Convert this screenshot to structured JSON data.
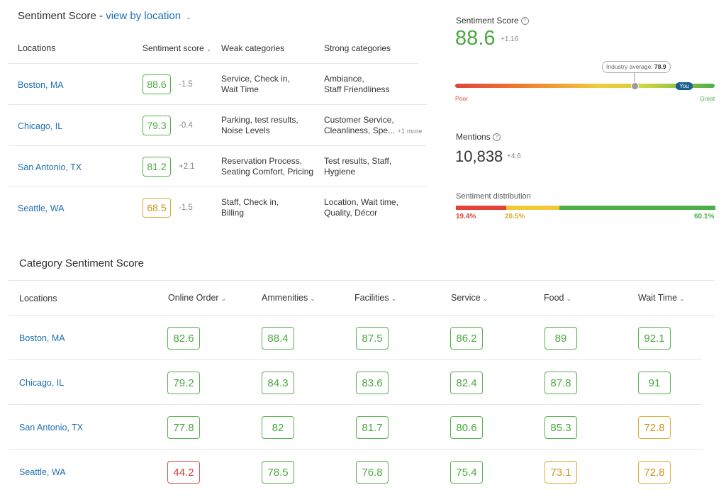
{
  "location_panel": {
    "title": "Sentiment Score - ",
    "view_link": "view by location",
    "headers": {
      "locations": "Locations",
      "sentiment_score": "Sentiment score",
      "weak": "Weak categories",
      "strong": "Strong categories"
    },
    "rows": [
      {
        "location": "Boston, MA",
        "score": "88.6",
        "delta": "-1.5",
        "weak1": "Service, Check in,",
        "weak2": "Wait Time",
        "strong1": "Ambiance,",
        "strong2": "Staff Friendliness",
        "more": ""
      },
      {
        "location": "Chicago, IL",
        "score": "79.3",
        "delta": "-0.4",
        "weak1": "Parking, test results,",
        "weak2": "Noise Levels",
        "strong1": "Customer Service,",
        "strong2": "Cleanliness, Spe...",
        "more": "+1 more"
      },
      {
        "location": "San Antonio, TX",
        "score": "81.2",
        "delta": "+2.1",
        "weak1": "Reservation Process,",
        "weak2": "Seating Comfort, Pricing",
        "strong1": "Test results, Staff,",
        "strong2": "Hygiene",
        "more": ""
      },
      {
        "location": "Seattle, WA",
        "score": "68.5",
        "delta": "-1.5",
        "weak1": "Staff, Check in,",
        "weak2": "Billing",
        "strong1": "Location, Wait time,",
        "strong2": "Quality, Décor",
        "more": ""
      }
    ]
  },
  "summary": {
    "sentiment_label": "Sentiment Score",
    "score": "88.6",
    "score_delta": "+1.16",
    "industry_label": "Industry average: ",
    "industry_value": "78.9",
    "you_label": "You",
    "poor_label": "Poor",
    "great_label": "Great",
    "industry_average": 78.9,
    "you_score": 88.6,
    "mentions_label": "Mentions",
    "mentions": "10,838",
    "mentions_delta": "+4.6",
    "distribution_label": "Sentiment distribution",
    "dist_negative": "19.4%",
    "dist_neutral": "20.5%",
    "dist_positive": "60.1%",
    "colors": {
      "negative": "#e0433b",
      "neutral": "#f0c93a",
      "positive": "#4caf4a",
      "accent": "#55b24a"
    }
  },
  "category_panel": {
    "title": "Category Sentiment Score",
    "headers": {
      "locations": "Locations",
      "online_order": "Online Order",
      "ammenities": "Ammenities",
      "facilities": "Facilities",
      "service": "Service",
      "food": "Food",
      "wait_time": "Wait Time"
    },
    "rows": [
      {
        "location": "Boston, MA",
        "scores": [
          "82.6",
          "88.4",
          "87.5",
          "86.2",
          "89",
          "92.1"
        ]
      },
      {
        "location": "Chicago, IL",
        "scores": [
          "79.2",
          "84.3",
          "83.6",
          "82.4",
          "87.8",
          "91"
        ]
      },
      {
        "location": "San Antonio, TX",
        "scores": [
          "77.8",
          "82",
          "81.7",
          "80.6",
          "85.3",
          "72.8"
        ]
      },
      {
        "location": "Seattle, WA",
        "scores": [
          "44.2",
          "78.5",
          "76.8",
          "75.4",
          "73.1",
          "72.8"
        ]
      }
    ]
  }
}
